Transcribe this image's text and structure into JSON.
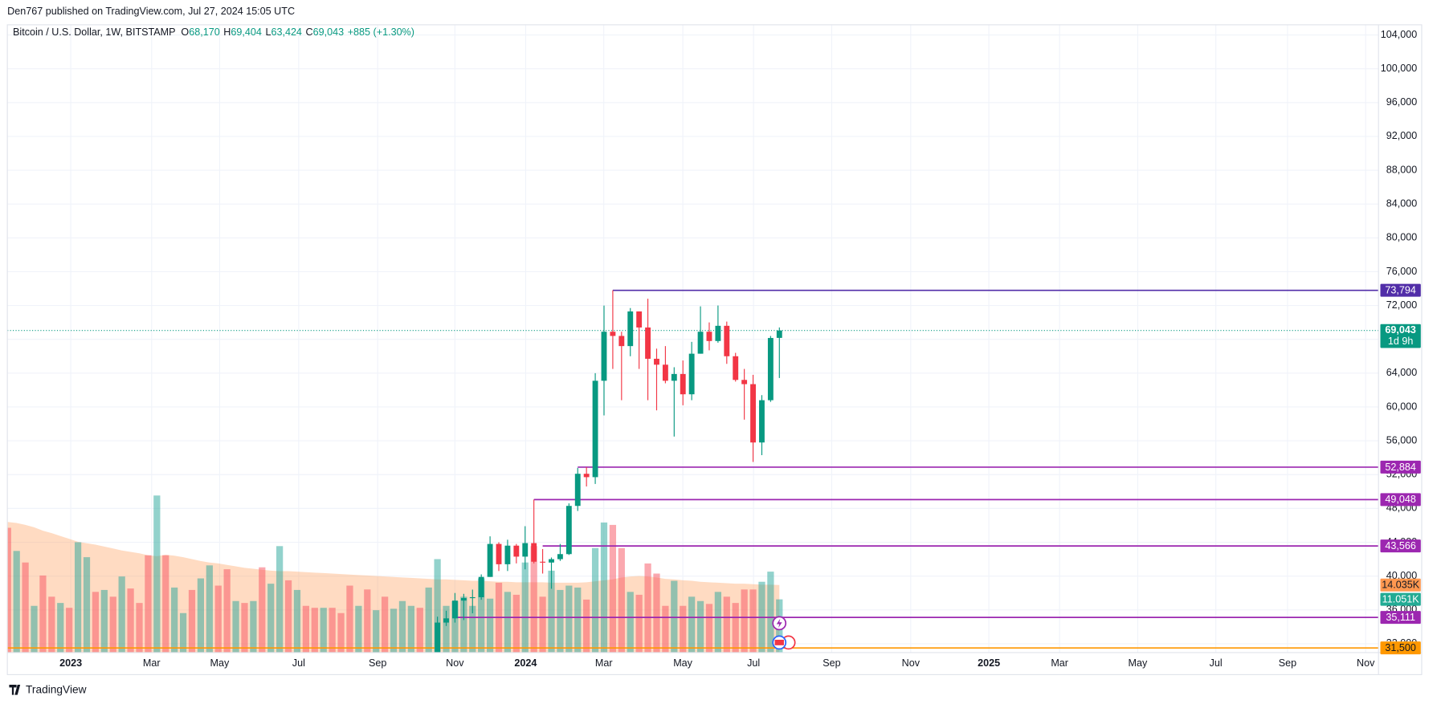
{
  "header": {
    "published": "Den767 published on TradingView.com, Jul 27, 2024 15:05 UTC"
  },
  "footer": {
    "brand": "TradingView"
  },
  "chart_data": {
    "type": "candlestick",
    "symbol": "Bitcoin / U.S. Dollar, 1W, BITSTAMP",
    "ohlc_prefixes": [
      "O",
      "H",
      "L",
      "C"
    ],
    "ohlc_labels": [
      "68,170",
      "69,404",
      "63,424",
      "69,043"
    ],
    "change": "+885 (+1.30%)",
    "up_color": "#089981",
    "down_color": "#f23645",
    "open": [
      29900,
      34500,
      35000,
      37100,
      37400,
      37500,
      39900,
      43800,
      41400,
      43600,
      42300,
      43900,
      41700,
      41600,
      42000,
      42600,
      48300,
      52100,
      51700,
      63100,
      68900,
      68400,
      67200,
      71300,
      69400,
      65700,
      65000,
      63100,
      63900,
      61500,
      66300,
      68900,
      67800,
      69600,
      66000,
      63200,
      62700,
      55800,
      60800,
      68170
    ],
    "high": [
      35200,
      35900,
      38000,
      37900,
      38400,
      40200,
      44700,
      44000,
      44300,
      43800,
      45900,
      49048,
      43200,
      42200,
      43800,
      48600,
      52800,
      52884,
      64000,
      72000,
      73794,
      68900,
      71700,
      71300,
      72800,
      66900,
      67200,
      64700,
      65500,
      67700,
      71900,
      70000,
      72000,
      70100,
      66400,
      64500,
      63800,
      61400,
      68400,
      69404
    ],
    "low": [
      29800,
      34100,
      34500,
      34800,
      35600,
      37200,
      39900,
      40600,
      40600,
      41500,
      40800,
      41500,
      40300,
      38500,
      41800,
      42500,
      47700,
      50600,
      50900,
      59000,
      64500,
      60800,
      66000,
      64500,
      60800,
      59600,
      62800,
      56500,
      60200,
      60800,
      66300,
      66700,
      67600,
      65100,
      63000,
      58500,
      53500,
      54300,
      60600,
      63424
    ],
    "close": [
      34500,
      35000,
      37100,
      37400,
      37500,
      39900,
      43800,
      41400,
      43600,
      42300,
      43900,
      41700,
      41600,
      42000,
      42600,
      48300,
      52100,
      51700,
      63100,
      68900,
      68400,
      67200,
      71300,
      69400,
      65700,
      65000,
      63100,
      63900,
      61500,
      66300,
      68900,
      67800,
      69600,
      66000,
      63200,
      62700,
      55800,
      60800,
      68158,
      69043
    ],
    "last_price_label": "69,043",
    "countdown": "1d 9h",
    "ylim": [
      30950,
      105200
    ],
    "yticks": [
      {
        "value": 32000,
        "label": "32,000"
      },
      {
        "value": 36000,
        "label": "36,000"
      },
      {
        "value": 40000,
        "label": "40,000"
      },
      {
        "value": 44000,
        "label": "44,000"
      },
      {
        "value": 48000,
        "label": "48,000"
      },
      {
        "value": 52000,
        "label": "52,000"
      },
      {
        "value": 56000,
        "label": "56,000"
      },
      {
        "value": 60000,
        "label": "60,000"
      },
      {
        "value": 64000,
        "label": "64,000"
      },
      {
        "value": 68000,
        "label": "68,000"
      },
      {
        "value": 72000,
        "label": "72,000"
      },
      {
        "value": 76000,
        "label": "76,000"
      },
      {
        "value": 80000,
        "label": "80,000"
      },
      {
        "value": 84000,
        "label": "84,000"
      },
      {
        "value": 88000,
        "label": "88,000"
      },
      {
        "value": 92000,
        "label": "92,000"
      },
      {
        "value": 96000,
        "label": "96,000"
      },
      {
        "value": 100000,
        "label": "100,000"
      },
      {
        "value": 104000,
        "label": "104,000"
      }
    ],
    "x_labels": [
      "2023",
      "Mar",
      "May",
      "Jul",
      "Sep",
      "Nov",
      "2024",
      "Mar",
      "May",
      "Jul",
      "Sep",
      "Nov",
      "2025",
      "Mar",
      "May",
      "Jul",
      "Sep",
      "Nov"
    ],
    "grid": true,
    "levels": [
      {
        "value": 73794,
        "label": "73,794",
        "color": "#512da8"
      },
      {
        "value": 52884,
        "label": "52,884",
        "color": "#9c27b0"
      },
      {
        "value": 49048,
        "label": "49,048",
        "color": "#9c27b0"
      },
      {
        "value": 43566,
        "label": "43,566",
        "color": "#9c27b0"
      },
      {
        "value": 35111,
        "label": "35,111",
        "color": "#9c27b0"
      },
      {
        "value": 31500,
        "label": "31,500",
        "color": "#ff9800"
      }
    ],
    "volume": {
      "values": [
        25.9,
        21.1,
        18.7,
        9.7,
        16.0,
        11.6,
        10.3,
        9.3,
        22.9,
        19.8,
        12.6,
        13.0,
        11.6,
        15.8,
        13.3,
        10.3,
        20.2,
        32.6,
        20.2,
        13.5,
        8.2,
        13.0,
        15.4,
        18.1,
        13.9,
        17.3,
        10.7,
        10.3,
        10.7,
        17.7,
        14.3,
        22.1,
        15.0,
        13.0,
        9.7,
        9.3,
        9.3,
        9.3,
        8.2,
        13.9,
        9.7,
        13.1,
        8.8,
        11.6,
        9.1,
        10.7,
        9.7,
        9.3,
        13.5,
        19.4,
        9.7,
        10.7,
        11.6,
        9.7,
        15.4,
        11.2,
        14.5,
        12.6,
        12.0,
        18.7,
        22.1,
        11.6,
        17.0,
        13.0,
        13.9,
        13.5,
        11.0,
        21.7,
        27.0,
        26.5,
        21.7,
        12.6,
        12.0,
        18.5,
        16.4,
        9.7,
        14.9,
        9.7,
        11.6,
        10.7,
        10.1,
        12.6,
        11.6,
        10.3,
        13.1,
        13.1,
        14.7,
        16.8,
        11.051
      ],
      "up": [
        false,
        true,
        false,
        true,
        false,
        false,
        true,
        false,
        true,
        true,
        false,
        true,
        false,
        true,
        false,
        false,
        false,
        true,
        false,
        true,
        true,
        false,
        true,
        true,
        false,
        false,
        true,
        false,
        true,
        false,
        true,
        true,
        false,
        true,
        false,
        false,
        true,
        false,
        false,
        false,
        true,
        false,
        true,
        false,
        true,
        true,
        true,
        false,
        true,
        true,
        true,
        true,
        true,
        true,
        true,
        true,
        false,
        true,
        false,
        true,
        false,
        false,
        true,
        true,
        true,
        true,
        false,
        true,
        true,
        false,
        false,
        true,
        false,
        false,
        false,
        false,
        true,
        false,
        true,
        true,
        false,
        true,
        false,
        false,
        false,
        false,
        true,
        true,
        true
      ],
      "up_color": "rgba(38,166,154,0.5)",
      "down_color": "rgba(247,82,95,0.5)",
      "last_label": "11.051K",
      "last_label_color": "#22ab94",
      "ma": [
        27.1,
        26.9,
        26.5,
        26.0,
        25.3,
        24.8,
        24.2,
        23.6,
        23.0,
        22.7,
        22.4,
        22.0,
        21.6,
        21.2,
        20.9,
        20.6,
        20.2,
        20.0,
        20.3,
        20.1,
        19.8,
        19.4,
        19.0,
        18.7,
        18.5,
        18.2,
        17.9,
        17.6,
        17.4,
        17.2,
        17.0,
        16.9,
        16.9,
        16.8,
        16.7,
        16.6,
        16.5,
        16.4,
        16.3,
        16.2,
        16.1,
        16.0,
        15.9,
        15.8,
        15.7,
        15.6,
        15.5,
        15.4,
        15.3,
        15.2,
        15.2,
        15.1,
        15.0,
        14.9,
        14.9,
        14.8,
        14.7,
        14.7,
        14.6,
        14.6,
        14.6,
        14.6,
        14.5,
        14.5,
        14.5,
        14.5,
        14.6,
        14.8,
        15.0,
        15.2,
        15.6,
        15.8,
        15.9,
        15.8,
        15.6,
        15.3,
        15.2,
        15.0,
        14.9,
        14.7,
        14.6,
        14.5,
        14.4,
        14.3,
        14.3,
        14.2,
        14.1,
        14.1,
        14.035
      ],
      "ma_color": "rgba(255,152,80,0.35)",
      "ma_label": "14.035K",
      "ma_label_color": "#ff9850"
    }
  }
}
